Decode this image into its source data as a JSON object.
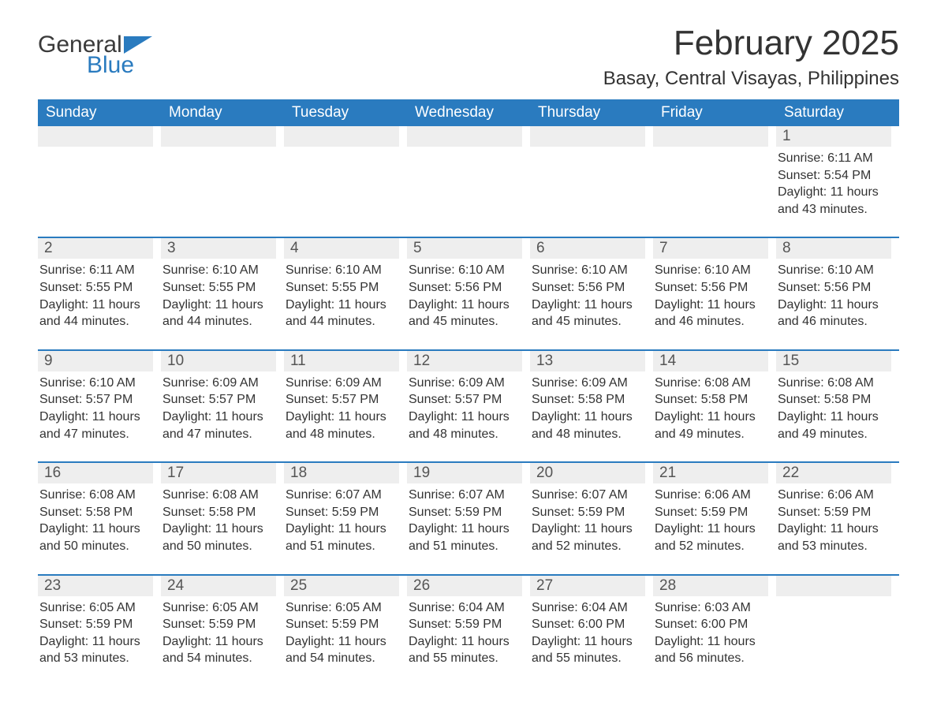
{
  "logo": {
    "text_general": "General",
    "text_blue": "Blue",
    "tri_color": "#2a7bbf"
  },
  "title": "February 2025",
  "location": "Basay, Central Visayas, Philippines",
  "colors": {
    "header_bg": "#2a7bbf",
    "header_text": "#ffffff",
    "daynum_bg": "#eeeeee",
    "daynum_text": "#555555",
    "body_text": "#333333",
    "separator": "#2a7bbf",
    "page_bg": "#ffffff"
  },
  "typography": {
    "title_fontsize": 44,
    "location_fontsize": 24,
    "header_fontsize": 19,
    "daynum_fontsize": 19,
    "info_fontsize": 16
  },
  "day_headers": [
    "Sunday",
    "Monday",
    "Tuesday",
    "Wednesday",
    "Thursday",
    "Friday",
    "Saturday"
  ],
  "weeks": [
    [
      {
        "empty": true
      },
      {
        "empty": true
      },
      {
        "empty": true
      },
      {
        "empty": true
      },
      {
        "empty": true
      },
      {
        "empty": true
      },
      {
        "num": "1",
        "sunrise": "Sunrise: 6:11 AM",
        "sunset": "Sunset: 5:54 PM",
        "daylight": "Daylight: 11 hours and 43 minutes."
      }
    ],
    [
      {
        "num": "2",
        "sunrise": "Sunrise: 6:11 AM",
        "sunset": "Sunset: 5:55 PM",
        "daylight": "Daylight: 11 hours and 44 minutes."
      },
      {
        "num": "3",
        "sunrise": "Sunrise: 6:10 AM",
        "sunset": "Sunset: 5:55 PM",
        "daylight": "Daylight: 11 hours and 44 minutes."
      },
      {
        "num": "4",
        "sunrise": "Sunrise: 6:10 AM",
        "sunset": "Sunset: 5:55 PM",
        "daylight": "Daylight: 11 hours and 44 minutes."
      },
      {
        "num": "5",
        "sunrise": "Sunrise: 6:10 AM",
        "sunset": "Sunset: 5:56 PM",
        "daylight": "Daylight: 11 hours and 45 minutes."
      },
      {
        "num": "6",
        "sunrise": "Sunrise: 6:10 AM",
        "sunset": "Sunset: 5:56 PM",
        "daylight": "Daylight: 11 hours and 45 minutes."
      },
      {
        "num": "7",
        "sunrise": "Sunrise: 6:10 AM",
        "sunset": "Sunset: 5:56 PM",
        "daylight": "Daylight: 11 hours and 46 minutes."
      },
      {
        "num": "8",
        "sunrise": "Sunrise: 6:10 AM",
        "sunset": "Sunset: 5:56 PM",
        "daylight": "Daylight: 11 hours and 46 minutes."
      }
    ],
    [
      {
        "num": "9",
        "sunrise": "Sunrise: 6:10 AM",
        "sunset": "Sunset: 5:57 PM",
        "daylight": "Daylight: 11 hours and 47 minutes."
      },
      {
        "num": "10",
        "sunrise": "Sunrise: 6:09 AM",
        "sunset": "Sunset: 5:57 PM",
        "daylight": "Daylight: 11 hours and 47 minutes."
      },
      {
        "num": "11",
        "sunrise": "Sunrise: 6:09 AM",
        "sunset": "Sunset: 5:57 PM",
        "daylight": "Daylight: 11 hours and 48 minutes."
      },
      {
        "num": "12",
        "sunrise": "Sunrise: 6:09 AM",
        "sunset": "Sunset: 5:57 PM",
        "daylight": "Daylight: 11 hours and 48 minutes."
      },
      {
        "num": "13",
        "sunrise": "Sunrise: 6:09 AM",
        "sunset": "Sunset: 5:58 PM",
        "daylight": "Daylight: 11 hours and 48 minutes."
      },
      {
        "num": "14",
        "sunrise": "Sunrise: 6:08 AM",
        "sunset": "Sunset: 5:58 PM",
        "daylight": "Daylight: 11 hours and 49 minutes."
      },
      {
        "num": "15",
        "sunrise": "Sunrise: 6:08 AM",
        "sunset": "Sunset: 5:58 PM",
        "daylight": "Daylight: 11 hours and 49 minutes."
      }
    ],
    [
      {
        "num": "16",
        "sunrise": "Sunrise: 6:08 AM",
        "sunset": "Sunset: 5:58 PM",
        "daylight": "Daylight: 11 hours and 50 minutes."
      },
      {
        "num": "17",
        "sunrise": "Sunrise: 6:08 AM",
        "sunset": "Sunset: 5:58 PM",
        "daylight": "Daylight: 11 hours and 50 minutes."
      },
      {
        "num": "18",
        "sunrise": "Sunrise: 6:07 AM",
        "sunset": "Sunset: 5:59 PM",
        "daylight": "Daylight: 11 hours and 51 minutes."
      },
      {
        "num": "19",
        "sunrise": "Sunrise: 6:07 AM",
        "sunset": "Sunset: 5:59 PM",
        "daylight": "Daylight: 11 hours and 51 minutes."
      },
      {
        "num": "20",
        "sunrise": "Sunrise: 6:07 AM",
        "sunset": "Sunset: 5:59 PM",
        "daylight": "Daylight: 11 hours and 52 minutes."
      },
      {
        "num": "21",
        "sunrise": "Sunrise: 6:06 AM",
        "sunset": "Sunset: 5:59 PM",
        "daylight": "Daylight: 11 hours and 52 minutes."
      },
      {
        "num": "22",
        "sunrise": "Sunrise: 6:06 AM",
        "sunset": "Sunset: 5:59 PM",
        "daylight": "Daylight: 11 hours and 53 minutes."
      }
    ],
    [
      {
        "num": "23",
        "sunrise": "Sunrise: 6:05 AM",
        "sunset": "Sunset: 5:59 PM",
        "daylight": "Daylight: 11 hours and 53 minutes."
      },
      {
        "num": "24",
        "sunrise": "Sunrise: 6:05 AM",
        "sunset": "Sunset: 5:59 PM",
        "daylight": "Daylight: 11 hours and 54 minutes."
      },
      {
        "num": "25",
        "sunrise": "Sunrise: 6:05 AM",
        "sunset": "Sunset: 5:59 PM",
        "daylight": "Daylight: 11 hours and 54 minutes."
      },
      {
        "num": "26",
        "sunrise": "Sunrise: 6:04 AM",
        "sunset": "Sunset: 5:59 PM",
        "daylight": "Daylight: 11 hours and 55 minutes."
      },
      {
        "num": "27",
        "sunrise": "Sunrise: 6:04 AM",
        "sunset": "Sunset: 6:00 PM",
        "daylight": "Daylight: 11 hours and 55 minutes."
      },
      {
        "num": "28",
        "sunrise": "Sunrise: 6:03 AM",
        "sunset": "Sunset: 6:00 PM",
        "daylight": "Daylight: 11 hours and 56 minutes."
      },
      {
        "empty": true
      }
    ]
  ]
}
